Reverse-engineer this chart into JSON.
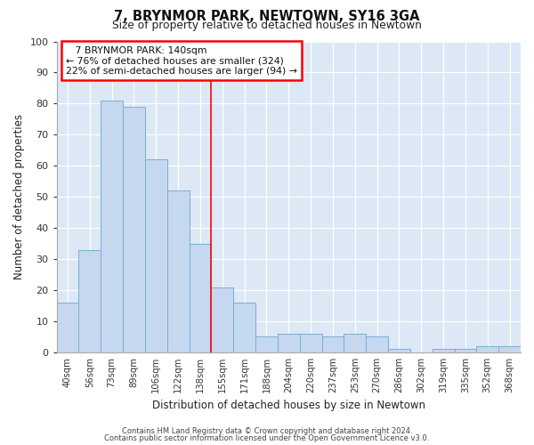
{
  "title": "7, BRYNMOR PARK, NEWTOWN, SY16 3GA",
  "subtitle": "Size of property relative to detached houses in Newtown",
  "xlabel": "Distribution of detached houses by size in Newtown",
  "ylabel": "Number of detached properties",
  "bar_color": "#c5d8f0",
  "bar_edge_color": "#7aadd4",
  "categories": [
    "40sqm",
    "56sqm",
    "73sqm",
    "89sqm",
    "106sqm",
    "122sqm",
    "138sqm",
    "155sqm",
    "171sqm",
    "188sqm",
    "204sqm",
    "220sqm",
    "237sqm",
    "253sqm",
    "270sqm",
    "286sqm",
    "302sqm",
    "319sqm",
    "335sqm",
    "352sqm",
    "368sqm"
  ],
  "values": [
    16,
    33,
    81,
    79,
    62,
    52,
    35,
    21,
    16,
    5,
    6,
    6,
    5,
    6,
    5,
    1,
    0,
    1,
    1,
    2,
    2
  ],
  "ylim": [
    0,
    100
  ],
  "yticks": [
    0,
    10,
    20,
    30,
    40,
    50,
    60,
    70,
    80,
    90,
    100
  ],
  "property_label": "7 BRYNMOR PARK: 140sqm",
  "pct_smaller": "76% of detached houses are smaller (324)",
  "pct_larger": "22% of semi-detached houses are larger (94)",
  "vline_bin_index": 6,
  "footer_line1": "Contains HM Land Registry data © Crown copyright and database right 2024.",
  "footer_line2": "Contains public sector information licensed under the Open Government Licence v3.0.",
  "background_color": "#ffffff",
  "plot_bg_color": "#dce8f5"
}
